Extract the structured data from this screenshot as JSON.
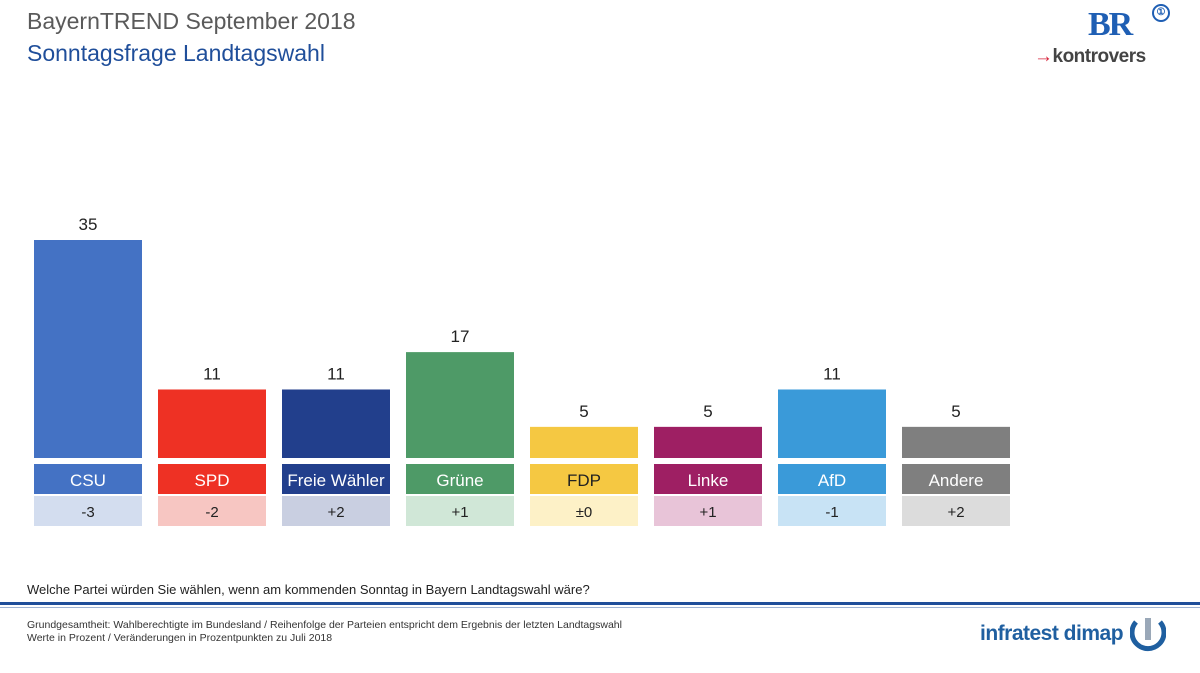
{
  "header": {
    "title": "BayernTREND September 2018",
    "subtitle": "Sonntagsfrage Landtagswahl"
  },
  "logos": {
    "br": "BR",
    "kontrovers": "kontrovers",
    "infratest": "infratest dimap"
  },
  "chart_data": {
    "type": "bar",
    "categories": [
      "CSU",
      "SPD",
      "Freie Wähler",
      "Grüne",
      "FDP",
      "Linke",
      "AfD",
      "Andere"
    ],
    "values": [
      35,
      11,
      11,
      17,
      5,
      5,
      11,
      5
    ],
    "changes": [
      "-3",
      "-2",
      "+2",
      "+1",
      "±0",
      "+1",
      "-1",
      "+2"
    ],
    "colors": [
      "#4472c4",
      "#ee3124",
      "#223f8c",
      "#4e9a67",
      "#f5c842",
      "#9e1f63",
      "#3a9ad9",
      "#7f7f7f"
    ],
    "change_colors": [
      "#d3ddef",
      "#f7c6c2",
      "#c9cfe1",
      "#d0e7d7",
      "#fdf1c7",
      "#e8c4d8",
      "#c8e3f5",
      "#dcdcdc"
    ],
    "label_text_colors": [
      "#ffffff",
      "#ffffff",
      "#ffffff",
      "#ffffff",
      "#222222",
      "#ffffff",
      "#ffffff",
      "#ffffff"
    ],
    "ylim": [
      0,
      35
    ],
    "title": "",
    "xlabel": "",
    "ylabel": ""
  },
  "question": "Welche Partei würden Sie wählen, wenn am kommenden Sonntag in Bayern Landtagswahl wäre?",
  "footnote": {
    "line1": "Grundgesamtheit:  Wahlberechtigte im Bundesland  / Reihenfolge  der Parteien  entspricht dem Ergebnis der letzten Landtagswahl",
    "line2": "Werte in Prozent / Veränderungen  in Prozentpunkten zu Juli 2018"
  }
}
